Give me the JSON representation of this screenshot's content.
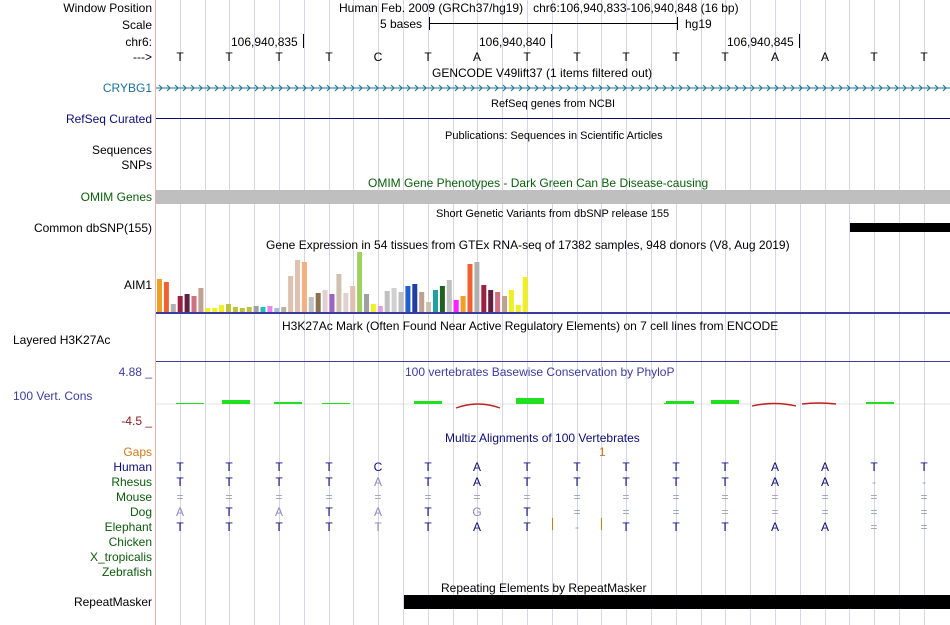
{
  "header": {
    "window_label": "Window Position",
    "window_text": "Human Feb. 2009 (GRCh37/hg19)   chr6:106,940,833-106,940,848 (16 bp)",
    "scale_label": "Scale",
    "scale_text": "5 bases",
    "scale_db": "hg19",
    "chr_label": "chr6:",
    "coord_labels": [
      "106,940,835",
      "106,940,840",
      "106,940,845"
    ],
    "strand_label": "--->",
    "bases": [
      "T",
      "T",
      "T",
      "T",
      "C",
      "T",
      "A",
      "T",
      "T",
      "T",
      "T",
      "T",
      "A",
      "A",
      "T",
      "T"
    ]
  },
  "tracks": {
    "gencode": {
      "title": "GENCODE V49lift37 (1 items filtered out)",
      "gene": "CRYBG1",
      "color": "#1a6f9e"
    },
    "refseq": {
      "title": "RefSeq genes from NCBI",
      "label": "RefSeq Curated",
      "color": "#0c0c78"
    },
    "publications": {
      "title": "Publications: Sequences in Scientific Articles",
      "label1": "Sequences",
      "label2": "SNPs"
    },
    "omim": {
      "title": "OMIM Gene Phenotypes - Dark Green Can Be Disease-causing",
      "label": "OMIM Genes",
      "color": "#0a5f0a"
    },
    "dbsnp": {
      "title": "Short Genetic Variants from dbSNP release 155",
      "label": "Common dbSNP(155)"
    },
    "gtex": {
      "title": "Gene Expression in 54 tissues from GTEx RNA-seq of 17382 samples, 948 donors (V8, Aug 2019)",
      "label": "AIM1"
    },
    "h3k27ac": {
      "title": "H3K27Ac Mark (Often Found Near Active Regulatory Elements) on 7 cell lines from ENCODE",
      "label": "Layered H3K27Ac"
    },
    "phylop": {
      "title": "100 vertebrates Basewise Conservation by PhyloP",
      "label": "100 Vert. Cons",
      "max": "4.88 _",
      "min": "-4.5 _",
      "color": "#3c3ca0"
    },
    "multiz": {
      "title": "Multiz Alignments of 100 Vertebrates",
      "gaps_label": "Gaps",
      "gaps_marker": "1",
      "species": [
        {
          "name": "Human",
          "seq": [
            "T",
            "T",
            "T",
            "T",
            "C",
            "T",
            "A",
            "T",
            "T",
            "T",
            "T",
            "T",
            "A",
            "A",
            "T",
            "T"
          ]
        },
        {
          "name": "Rhesus",
          "seq": [
            "T",
            "T",
            "T",
            "T",
            "A",
            "T",
            "A",
            "T",
            "T",
            "T",
            "T",
            "T",
            "A",
            "A",
            "-",
            "-"
          ]
        },
        {
          "name": "Mouse",
          "seq": [
            "=",
            "=",
            "=",
            "=",
            "=",
            "=",
            "=",
            "=",
            "=",
            "=",
            "=",
            "=",
            "=",
            "=",
            "=",
            "="
          ]
        },
        {
          "name": "Dog",
          "seq": [
            "A",
            "T",
            "A",
            "T",
            "A",
            "T",
            "G",
            "T",
            "=",
            "=",
            "=",
            "=",
            "=",
            "=",
            "=",
            "="
          ]
        },
        {
          "name": "Elephant",
          "seq": [
            "T",
            "T",
            "T",
            "T",
            "T",
            "T",
            "A",
            "T",
            "-",
            "T",
            "T",
            "T",
            "A",
            "A",
            "=",
            "="
          ]
        },
        {
          "name": "Chicken",
          "seq": []
        },
        {
          "name": "X_tropicalis",
          "seq": []
        },
        {
          "name": "Zebrafish",
          "seq": []
        }
      ]
    },
    "repeatmasker": {
      "title": "Repeating Elements by RepeatMasker",
      "label": "RepeatMasker"
    }
  },
  "colors": {
    "gap": "#d07a18",
    "species": "#0b5a0b",
    "human": "#0c0c78",
    "grid": "#d5d5e8"
  }
}
